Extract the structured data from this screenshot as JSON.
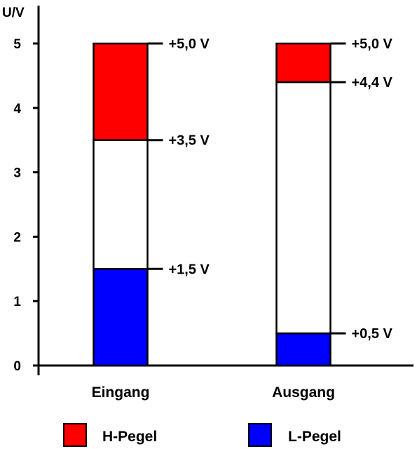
{
  "chart_data": {
    "type": "bar",
    "ylabel": "U/V",
    "ylim": [
      0,
      5
    ],
    "yticks": [
      0,
      1,
      2,
      3,
      4,
      5
    ],
    "categories": [
      "Eingang",
      "Ausgang"
    ],
    "bars": [
      {
        "category": "Eingang",
        "segments": [
          {
            "kind": "L",
            "from": 0,
            "to": 1.5
          },
          {
            "kind": "undefined",
            "from": 1.5,
            "to": 3.5
          },
          {
            "kind": "H",
            "from": 3.5,
            "to": 5.0
          }
        ],
        "level_labels": [
          {
            "value": 5.0,
            "text": "+5,0 V"
          },
          {
            "value": 3.5,
            "text": "+3,5 V"
          },
          {
            "value": 1.5,
            "text": "+1,5 V"
          }
        ]
      },
      {
        "category": "Ausgang",
        "segments": [
          {
            "kind": "L",
            "from": 0,
            "to": 0.5
          },
          {
            "kind": "undefined",
            "from": 0.5,
            "to": 4.4
          },
          {
            "kind": "H",
            "from": 4.4,
            "to": 5.0
          }
        ],
        "level_labels": [
          {
            "value": 5.0,
            "text": "+5,0 V"
          },
          {
            "value": 4.4,
            "text": "+4,4 V"
          },
          {
            "value": 0.5,
            "text": "+0,5 V"
          }
        ]
      }
    ],
    "legend": [
      {
        "key": "H",
        "label": "H-Pegel",
        "color": "#ff0000"
      },
      {
        "key": "L",
        "label": "L-Pegel",
        "color": "#0000ff"
      }
    ],
    "colors": {
      "H": "#ff0000",
      "L": "#0000ff",
      "undefined": "#ffffff"
    },
    "legend_position": "bottom"
  }
}
